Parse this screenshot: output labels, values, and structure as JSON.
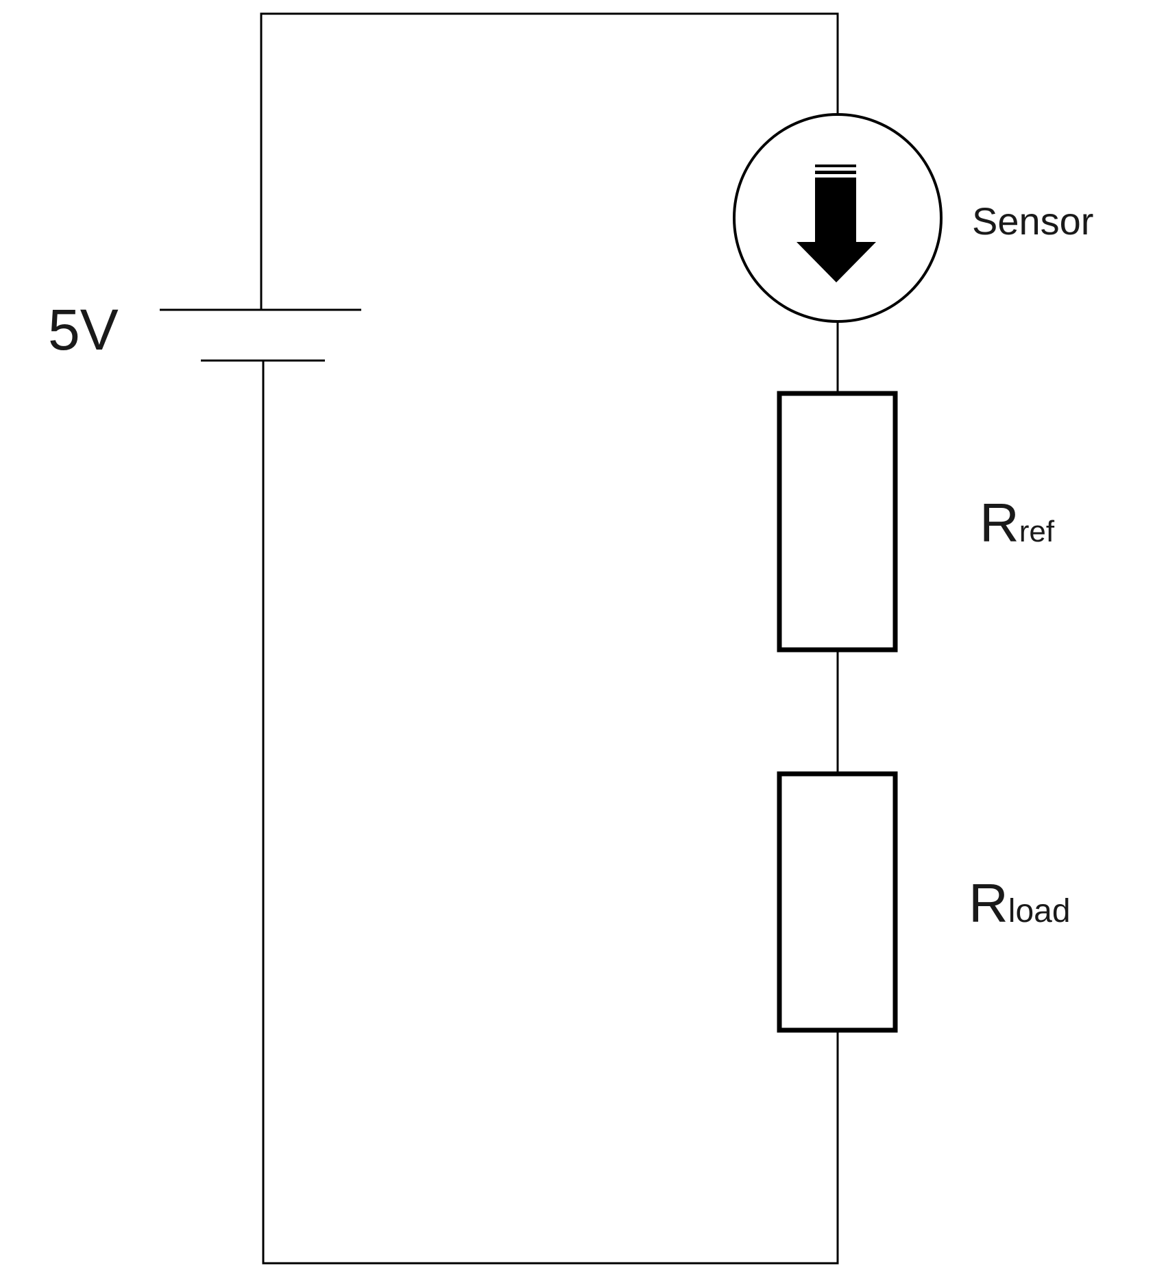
{
  "labels": {
    "source_voltage": "5V",
    "sensor": "Sensor",
    "r_ref_main": "R",
    "r_ref_sub": "ref",
    "r_load_main": "R",
    "r_load_sub": "load"
  },
  "colors": {
    "line": "#000000",
    "background": "#ffffff",
    "text": "#1a1a1a"
  },
  "icons": {
    "sensor_symbol": "down-arrow-in-circle"
  }
}
